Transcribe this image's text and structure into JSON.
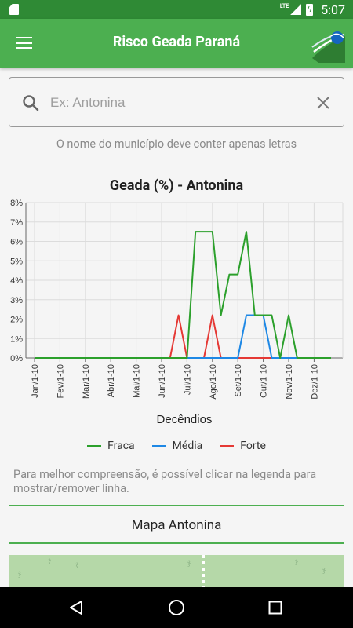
{
  "status_bar": {
    "time": "5:07",
    "network": "LTE"
  },
  "app_bar": {
    "title": "Risco Geada Paraná"
  },
  "search": {
    "placeholder": "Ex: Antonina",
    "value": ""
  },
  "hint": "O nome do município deve conter apenas letras",
  "chart_data": {
    "type": "line",
    "title": "Geada (%) - Antonina",
    "xlabel": "Decêndios",
    "ylabel": "",
    "ylim": [
      0,
      8
    ],
    "y_ticks": [
      "0%",
      "1%",
      "2%",
      "3%",
      "4%",
      "5%",
      "6%",
      "7%",
      "8%"
    ],
    "x_tick_labels": [
      "Jan/1-10",
      "Fev/1-10",
      "Mar/1-10",
      "Abr/1-10",
      "Mai/1-10",
      "Jun/1-10",
      "Jul/1-10",
      "Ago/1-10",
      "Set/1-10",
      "Out/1-10",
      "Nov/1-10",
      "Dez/1-10"
    ],
    "x_count": 36,
    "grid": true,
    "legend_position": "bottom",
    "series": [
      {
        "name": "Fraca",
        "color": "#2ca02c",
        "values": [
          0,
          0,
          0,
          0,
          0,
          0,
          0,
          0,
          0,
          0,
          0,
          0,
          0,
          0,
          0,
          0,
          0,
          0,
          0,
          6.5,
          6.5,
          6.5,
          2.2,
          4.3,
          4.3,
          6.5,
          2.2,
          2.2,
          2.2,
          0,
          2.2,
          0,
          0,
          0,
          0,
          0
        ]
      },
      {
        "name": "Média",
        "color": "#1e88e5",
        "values": [
          0,
          0,
          0,
          0,
          0,
          0,
          0,
          0,
          0,
          0,
          0,
          0,
          0,
          0,
          0,
          0,
          0,
          0,
          0,
          0,
          0,
          0,
          0,
          0,
          0,
          2.2,
          2.2,
          2.2,
          0,
          0,
          0,
          0,
          0,
          0,
          0,
          0
        ]
      },
      {
        "name": "Forte",
        "color": "#e53935",
        "values": [
          0,
          0,
          0,
          0,
          0,
          0,
          0,
          0,
          0,
          0,
          0,
          0,
          0,
          0,
          0,
          0,
          0,
          2.2,
          0,
          0,
          0,
          2.2,
          0,
          0,
          0,
          0,
          0,
          0,
          0,
          0,
          0,
          0,
          0,
          0,
          0,
          0
        ]
      }
    ]
  },
  "legend_note": "Para melhor compreensão, é possível clicar na legenda para mostrar/remover linha.",
  "map_button": {
    "label": "Mapa Antonina"
  },
  "colors": {
    "primary": "#4caf50",
    "status_bar": "#2f8a35"
  }
}
